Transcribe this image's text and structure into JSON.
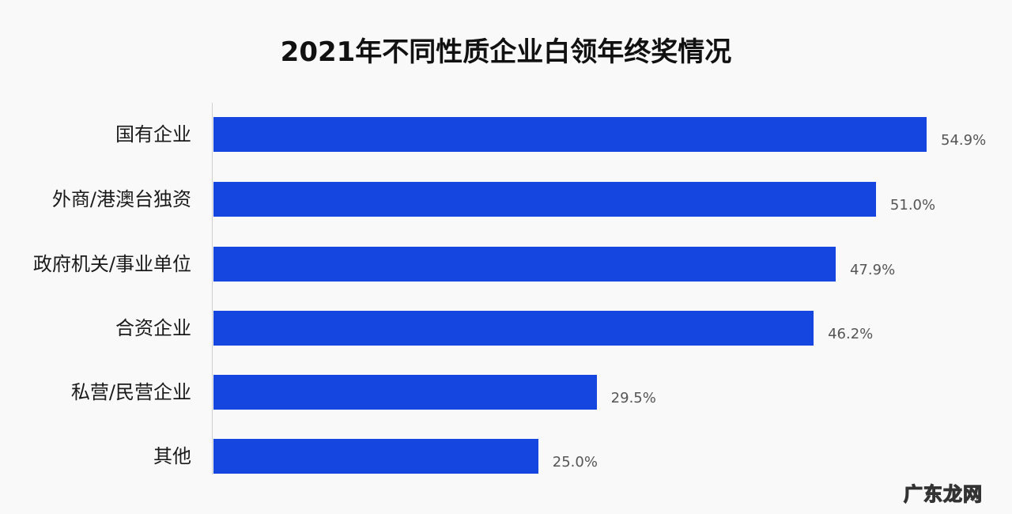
{
  "chart_data": {
    "type": "bar",
    "orientation": "horizontal",
    "title": "2021年不同性质企业白领年终奖情况",
    "categories": [
      "国有企业",
      "外商/港澳台独资",
      "政府机关/事业单位",
      "合资企业",
      "私营/民营企业",
      "其他"
    ],
    "values": [
      54.9,
      51.0,
      47.9,
      46.2,
      29.5,
      25.0
    ],
    "value_labels": [
      "54.9%",
      "51.0%",
      "47.9%",
      "46.2%",
      "29.5%",
      "25.0%"
    ],
    "unit": "%",
    "xlabel": "",
    "ylabel": "",
    "grid": false,
    "legend": null,
    "bar_color": "#1646e0"
  },
  "watermark": "广东龙网"
}
